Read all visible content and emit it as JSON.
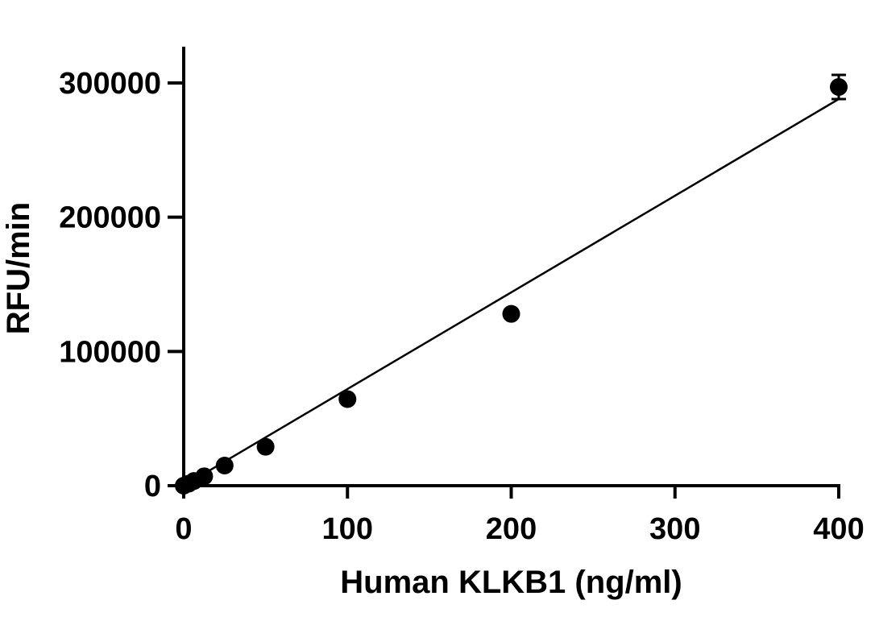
{
  "chart_data": {
    "type": "scatter",
    "title": "",
    "xlabel": "Human KLKB1 (ng/ml)",
    "ylabel": "RFU/min",
    "xlim": [
      0,
      400
    ],
    "ylim": [
      0,
      300000
    ],
    "x_ticks": [
      0,
      100,
      200,
      300,
      400
    ],
    "y_ticks": [
      0,
      100000,
      200000,
      300000
    ],
    "x_tick_labels": [
      "0",
      "100",
      "200",
      "300",
      "400"
    ],
    "y_tick_labels": [
      "0",
      "100000",
      "200000",
      "300000"
    ],
    "grid": false,
    "legend": "none",
    "marker_color": "#000000",
    "series": [
      {
        "points": [
          {
            "x": 0,
            "y": 0
          },
          {
            "x": 3.125,
            "y": 1500
          },
          {
            "x": 6.25,
            "y": 3500
          },
          {
            "x": 12.5,
            "y": 7000
          },
          {
            "x": 25,
            "y": 15000
          },
          {
            "x": 50,
            "y": 29000
          },
          {
            "x": 100,
            "y": 64500
          },
          {
            "x": 200,
            "y": 128000
          },
          {
            "x": 400,
            "y": 297000,
            "error": 9000
          }
        ]
      }
    ],
    "fit_line": {
      "type": "linear",
      "start": {
        "x": 0,
        "y": 0
      },
      "end": {
        "x": 400,
        "y": 288000
      }
    }
  }
}
